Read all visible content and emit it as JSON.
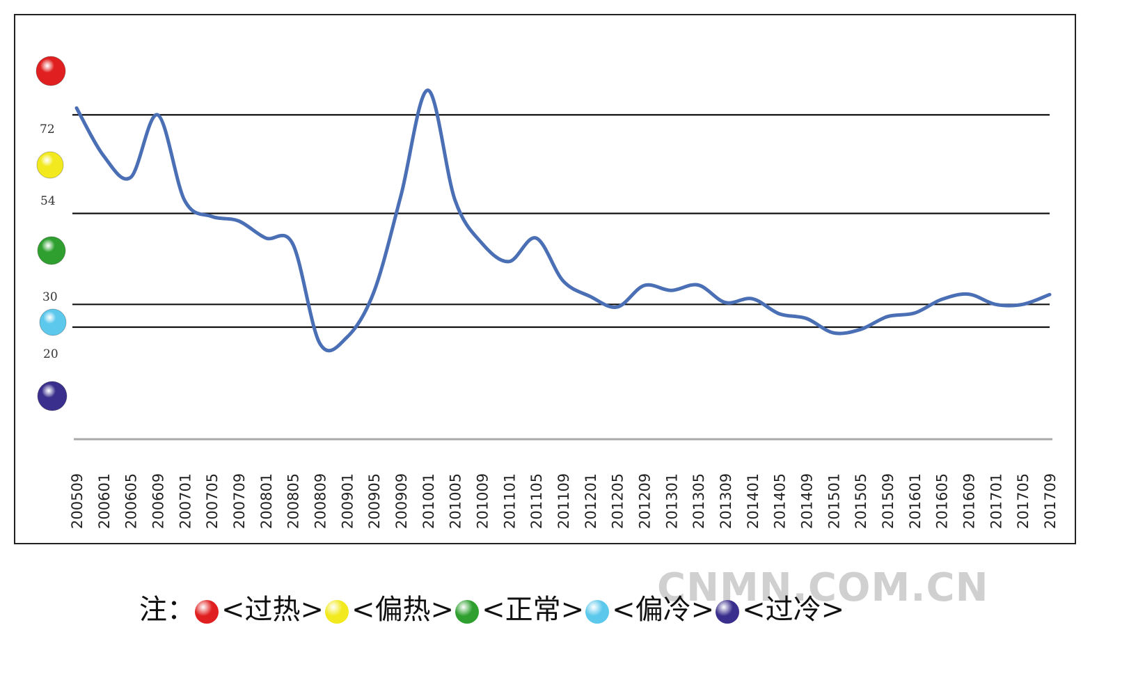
{
  "chart_data": {
    "type": "line",
    "title": "",
    "xlabel": "",
    "ylabel": "",
    "ylim": [
      0,
      100
    ],
    "grid": false,
    "threshold_lines": [
      80,
      54,
      30,
      24
    ],
    "y_tick_labels": [
      "72",
      "54",
      "30",
      "20"
    ],
    "x_tick_labels": [
      "200509",
      "200601",
      "200605",
      "200609",
      "200701",
      "200705",
      "200709",
      "200801",
      "200805",
      "200809",
      "200901",
      "200905",
      "200909",
      "201001",
      "201005",
      "201009",
      "201101",
      "201105",
      "201109",
      "201201",
      "201205",
      "201209",
      "201301",
      "201305",
      "201309",
      "201401",
      "201405",
      "201409",
      "201501",
      "201505",
      "201509",
      "201601",
      "201605",
      "201609",
      "201701",
      "201705",
      "201709"
    ],
    "series": [
      {
        "values": [
          81.8,
          69.2,
          63.5,
          80.0,
          57.4,
          53.2,
          52.0,
          47.5,
          45.9,
          19.7,
          21.3,
          33.3,
          58.7,
          86.5,
          57.5,
          46.1,
          41.3,
          47.5,
          36.2,
          32.1,
          29.3,
          35.0,
          33.7,
          35.1,
          30.5,
          31.5,
          27.5,
          26.3,
          22.5,
          23.4,
          26.8,
          27.7,
          31.3,
          32.7,
          30.0,
          30.0,
          32.6
        ]
      }
    ],
    "status_balls": [
      {
        "name": "overheat",
        "color": "#e02020"
      },
      {
        "name": "warm",
        "color": "#f2ea1e"
      },
      {
        "name": "normal",
        "color": "#2fa030"
      },
      {
        "name": "cool",
        "color": "#5cc8ec"
      },
      {
        "name": "overcool",
        "color": "#3a2f8c"
      }
    ]
  },
  "legend": {
    "note_label": "注：",
    "items": [
      {
        "label": "<过热>",
        "color": "#e02020"
      },
      {
        "label": "<偏热>",
        "color": "#f2ea1e"
      },
      {
        "label": "<正常>",
        "color": "#2fa030"
      },
      {
        "label": "<偏冷>",
        "color": "#5cc8ec"
      },
      {
        "label": "<过冷>",
        "color": "#3a2f8c"
      }
    ]
  },
  "watermark": "CNMN.COM.CN",
  "colors": {
    "line": "#4a6fb5",
    "threshold": "#111111",
    "baseline": "#a9a9a9"
  }
}
